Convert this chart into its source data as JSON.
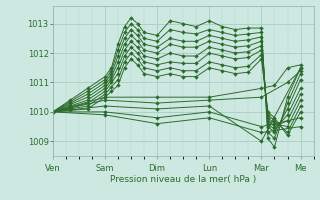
{
  "title": "",
  "xlabel": "Pression niveau de la mer( hPa )",
  "bg_color": "#cce8e0",
  "grid_color_major": "#a0c8c0",
  "grid_color_minor": "#b8d8d0",
  "line_color": "#2d6b2d",
  "ylim": [
    1008.5,
    1013.6
  ],
  "yticks": [
    1009,
    1010,
    1011,
    1012,
    1013
  ],
  "xlim": [
    0,
    120
  ],
  "x_day_labels": [
    "Ven",
    "Sam",
    "Dim",
    "Lun",
    "Mar",
    "Me"
  ],
  "x_day_positions": [
    0,
    24,
    48,
    72,
    96,
    114
  ],
  "lines": [
    {
      "x": [
        0,
        8,
        16,
        24,
        27,
        30,
        33,
        36,
        39,
        42,
        48,
        54,
        60,
        66,
        72,
        78,
        84,
        90,
        96,
        99,
        102,
        108,
        114
      ],
      "y": [
        1010.0,
        1010.4,
        1010.8,
        1011.2,
        1011.5,
        1012.3,
        1012.9,
        1013.2,
        1013.0,
        1012.7,
        1012.6,
        1013.1,
        1013.0,
        1012.9,
        1013.1,
        1012.9,
        1012.8,
        1012.85,
        1012.85,
        1009.1,
        1008.8,
        1010.5,
        1011.5
      ]
    },
    {
      "x": [
        0,
        8,
        16,
        24,
        27,
        30,
        33,
        36,
        39,
        42,
        48,
        54,
        60,
        66,
        72,
        78,
        84,
        90,
        96,
        99,
        102,
        108,
        114
      ],
      "y": [
        1010.0,
        1010.35,
        1010.7,
        1011.1,
        1011.4,
        1012.1,
        1012.7,
        1013.0,
        1012.8,
        1012.5,
        1012.4,
        1012.8,
        1012.7,
        1012.65,
        1012.8,
        1012.7,
        1012.6,
        1012.65,
        1012.7,
        1009.3,
        1009.1,
        1010.3,
        1011.3
      ]
    },
    {
      "x": [
        0,
        8,
        16,
        24,
        27,
        30,
        33,
        36,
        39,
        42,
        48,
        54,
        60,
        66,
        72,
        78,
        84,
        90,
        96,
        99,
        102,
        108,
        114
      ],
      "y": [
        1010.0,
        1010.3,
        1010.6,
        1011.0,
        1011.3,
        1011.9,
        1012.5,
        1012.8,
        1012.6,
        1012.3,
        1012.2,
        1012.5,
        1012.4,
        1012.4,
        1012.6,
        1012.5,
        1012.4,
        1012.45,
        1012.55,
        1009.5,
        1009.3,
        1010.1,
        1011.1
      ]
    },
    {
      "x": [
        0,
        8,
        16,
        24,
        27,
        30,
        33,
        36,
        39,
        42,
        48,
        54,
        60,
        66,
        72,
        78,
        84,
        90,
        96,
        99,
        102,
        108,
        114
      ],
      "y": [
        1010.0,
        1010.25,
        1010.5,
        1010.9,
        1011.2,
        1011.7,
        1012.3,
        1012.6,
        1012.4,
        1012.1,
        1012.0,
        1012.3,
        1012.2,
        1012.2,
        1012.4,
        1012.3,
        1012.2,
        1012.25,
        1012.4,
        1009.6,
        1009.4,
        1009.9,
        1010.8
      ]
    },
    {
      "x": [
        0,
        8,
        16,
        24,
        27,
        30,
        33,
        36,
        39,
        42,
        48,
        54,
        60,
        66,
        72,
        78,
        84,
        90,
        96,
        99,
        102,
        108,
        114
      ],
      "y": [
        1010.0,
        1010.2,
        1010.4,
        1010.8,
        1011.1,
        1011.5,
        1012.1,
        1012.4,
        1012.2,
        1011.9,
        1011.8,
        1012.0,
        1011.9,
        1011.9,
        1012.2,
        1012.1,
        1012.0,
        1012.05,
        1012.25,
        1009.7,
        1009.5,
        1009.7,
        1010.6
      ]
    },
    {
      "x": [
        0,
        8,
        16,
        24,
        27,
        30,
        33,
        36,
        39,
        42,
        48,
        54,
        60,
        66,
        72,
        78,
        84,
        90,
        96,
        99,
        102,
        108,
        114
      ],
      "y": [
        1010.0,
        1010.15,
        1010.3,
        1010.7,
        1011.0,
        1011.3,
        1011.9,
        1012.2,
        1012.0,
        1011.7,
        1011.6,
        1011.7,
        1011.65,
        1011.65,
        1012.0,
        1011.9,
        1011.8,
        1011.85,
        1012.1,
        1009.8,
        1009.6,
        1009.5,
        1010.4
      ]
    },
    {
      "x": [
        0,
        8,
        16,
        24,
        27,
        30,
        33,
        36,
        39,
        42,
        48,
        54,
        60,
        66,
        72,
        78,
        84,
        90,
        96,
        99,
        102,
        108,
        114
      ],
      "y": [
        1010.0,
        1010.1,
        1010.2,
        1010.6,
        1010.85,
        1011.1,
        1011.7,
        1012.0,
        1011.8,
        1011.5,
        1011.4,
        1011.5,
        1011.4,
        1011.4,
        1011.7,
        1011.6,
        1011.5,
        1011.55,
        1011.95,
        1009.9,
        1009.7,
        1009.3,
        1010.2
      ]
    },
    {
      "x": [
        0,
        8,
        16,
        24,
        27,
        30,
        33,
        36,
        39,
        42,
        48,
        54,
        60,
        66,
        72,
        78,
        84,
        90,
        96,
        99,
        102,
        108,
        114
      ],
      "y": [
        1010.0,
        1010.05,
        1010.1,
        1010.5,
        1010.7,
        1010.9,
        1011.5,
        1011.8,
        1011.6,
        1011.3,
        1011.2,
        1011.3,
        1011.2,
        1011.2,
        1011.5,
        1011.4,
        1011.3,
        1011.35,
        1011.8,
        1010.0,
        1009.8,
        1009.2,
        1010.0
      ]
    },
    {
      "x": [
        0,
        24,
        48,
        72,
        96,
        102,
        108,
        114
      ],
      "y": [
        1010.0,
        1010.5,
        1010.5,
        1010.5,
        1010.8,
        1010.9,
        1011.5,
        1011.6
      ]
    },
    {
      "x": [
        0,
        24,
        48,
        72,
        96,
        108,
        114
      ],
      "y": [
        1010.0,
        1010.4,
        1010.3,
        1010.4,
        1010.5,
        1011.0,
        1011.4
      ]
    },
    {
      "x": [
        0,
        24,
        48,
        72,
        96,
        114
      ],
      "y": [
        1010.0,
        1010.2,
        1010.1,
        1010.2,
        1009.0,
        1011.5
      ]
    },
    {
      "x": [
        0,
        24,
        48,
        72,
        96,
        114
      ],
      "y": [
        1010.0,
        1010.0,
        1009.8,
        1010.0,
        1009.5,
        1009.8
      ]
    },
    {
      "x": [
        0,
        24,
        48,
        72,
        96,
        114
      ],
      "y": [
        1010.0,
        1009.9,
        1009.6,
        1009.8,
        1009.3,
        1009.5
      ]
    }
  ]
}
